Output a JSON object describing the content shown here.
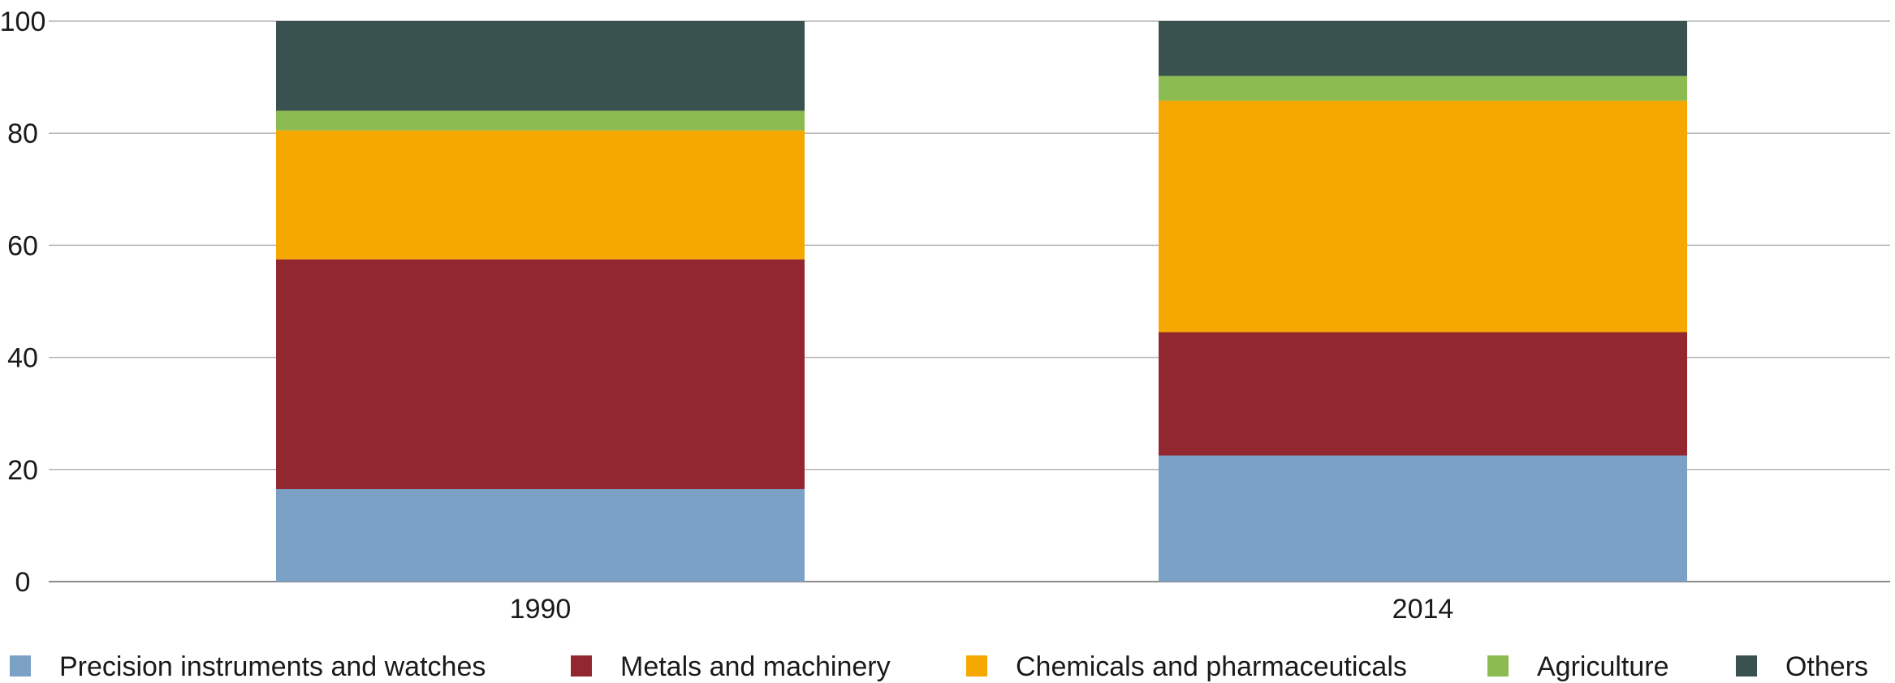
{
  "chart_data": {
    "type": "bar",
    "stacked": true,
    "categories": [
      "1990",
      "2014"
    ],
    "series": [
      {
        "name": "Precision instruments and watches",
        "color": "#7ba1c6",
        "values": [
          16.5,
          22.5
        ]
      },
      {
        "name": "Metals and machinery",
        "color": "#922730",
        "values": [
          41.0,
          22.0
        ]
      },
      {
        "name": "Chemicals and pharmaceuticals",
        "color": "#f5a800",
        "values": [
          23.0,
          41.3
        ]
      },
      {
        "name": "Agriculture",
        "color": "#8cbb52",
        "values": [
          3.5,
          4.4
        ]
      },
      {
        "name": "Others",
        "color": "#3a524f",
        "values": [
          16.0,
          9.8
        ]
      }
    ],
    "ylim": [
      0,
      100
    ],
    "yticks": [
      "0",
      "20",
      "40",
      "60",
      "80",
      "100"
    ],
    "grid": true,
    "legend_position": "bottom",
    "title": "",
    "xlabel": "",
    "ylabel": ""
  }
}
